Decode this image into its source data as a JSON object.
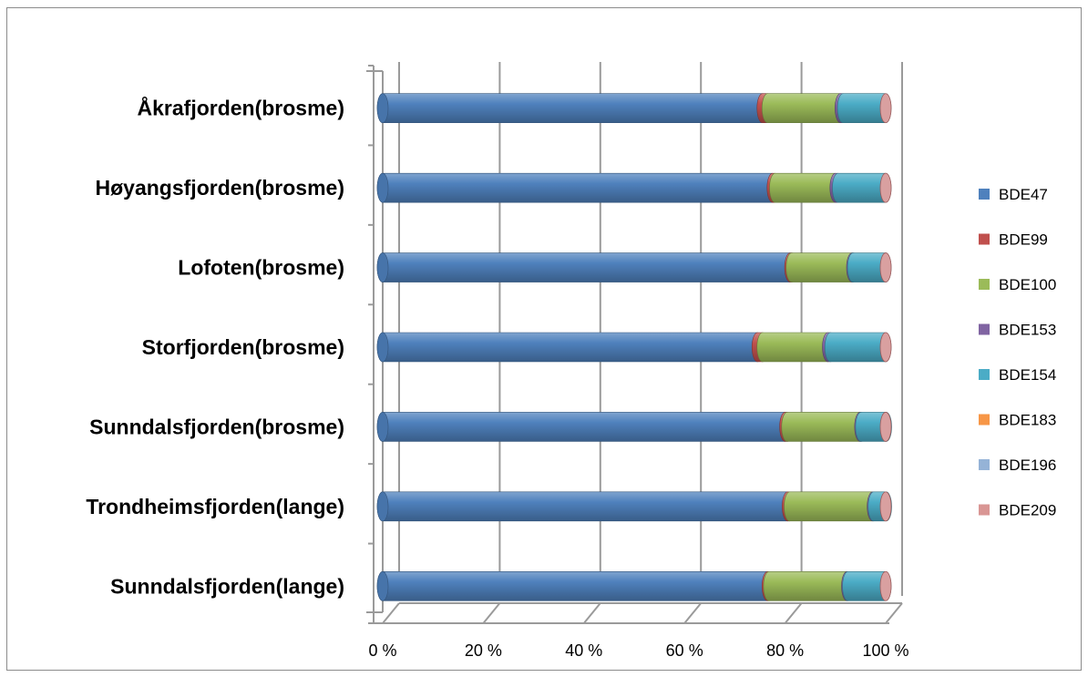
{
  "chart_data": {
    "type": "bar",
    "orientation": "horizontal",
    "stacked": "percent",
    "style": "3d-cylinder",
    "title": "",
    "xlabel": "",
    "ylabel": "",
    "xlim": [
      0,
      100
    ],
    "x_ticks": [
      "0 %",
      "20 %",
      "40 %",
      "60 %",
      "80 %",
      "100 %"
    ],
    "grid": true,
    "legend_position": "right",
    "categories": [
      "Åkrafjorden(brosme)",
      "Høyangsfjorden(brosme)",
      "Lofoten(brosme)",
      "Storfjorden(brosme)",
      "Sunndalsfjorden(brosme)",
      "Trondheimsfjorden(lange)",
      "Sunndalsfjorden(lange)"
    ],
    "series": [
      {
        "name": "BDE47",
        "color": "#4F81BD",
        "values": [
          75.5,
          77.5,
          81.0,
          74.5,
          80.0,
          80.5,
          76.5
        ]
      },
      {
        "name": "BDE99",
        "color": "#C0504D",
        "values": [
          1.0,
          0.5,
          0.3,
          1.0,
          0.4,
          0.4,
          0.3
        ]
      },
      {
        "name": "BDE100",
        "color": "#9BBB59",
        "values": [
          14.5,
          12.0,
          12.0,
          13.0,
          14.5,
          16.5,
          15.5
        ]
      },
      {
        "name": "BDE153",
        "color": "#8064A2",
        "values": [
          0.5,
          0.5,
          0.2,
          0.5,
          0.2,
          0.2,
          0.2
        ]
      },
      {
        "name": "BDE154",
        "color": "#4BACC6",
        "values": [
          8.5,
          9.5,
          6.5,
          11.0,
          5.0,
          2.5,
          7.5
        ]
      },
      {
        "name": "BDE183",
        "color": "#F79646",
        "values": [
          0,
          0,
          0,
          0,
          0,
          0,
          0
        ]
      },
      {
        "name": "BDE196",
        "color": "#95B3D7",
        "values": [
          0,
          0,
          0,
          0,
          0,
          0,
          0
        ]
      },
      {
        "name": "BDE209",
        "color": "#D99694",
        "values": [
          0,
          0,
          0,
          0,
          0,
          0,
          0
        ]
      }
    ]
  }
}
